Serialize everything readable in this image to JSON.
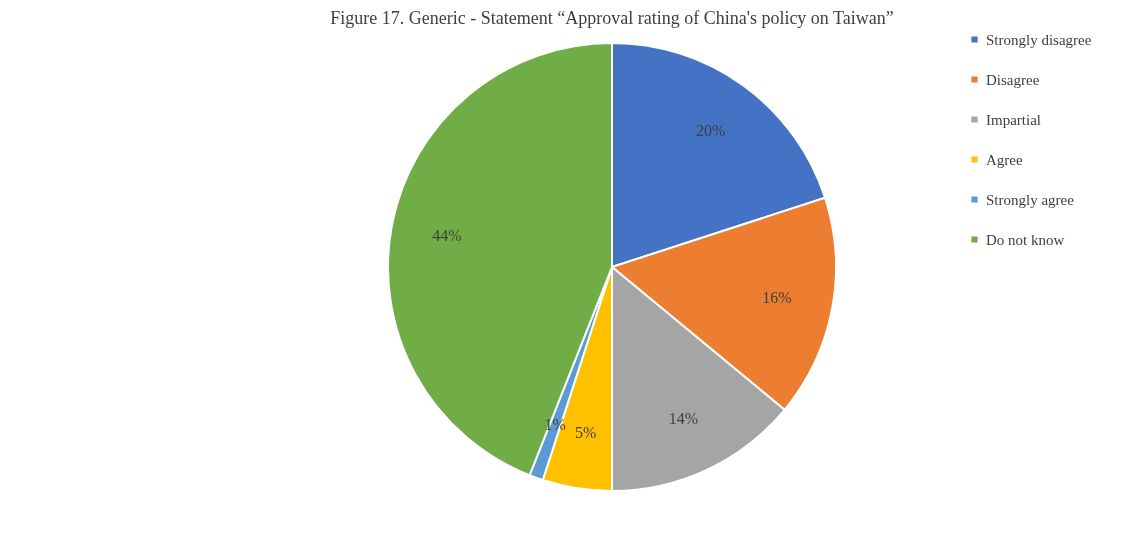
{
  "chart_data": {
    "type": "pie",
    "title": "Figure 17. Generic - Statement “Approval rating of China's policy on Taiwan”",
    "categories": [
      "Strongly disagree",
      "Disagree",
      "Impartial",
      "Agree",
      "Strongly agree",
      "Do not know"
    ],
    "values": [
      20,
      16,
      14,
      5,
      1,
      44
    ],
    "colors": [
      "#4472c4",
      "#ed7d31",
      "#a5a5a5",
      "#ffc000",
      "#5b9bd5",
      "#70ad47"
    ],
    "value_labels": [
      "20%",
      "16%",
      "14%",
      "5%",
      "1%",
      "44%"
    ],
    "legend": "right"
  }
}
